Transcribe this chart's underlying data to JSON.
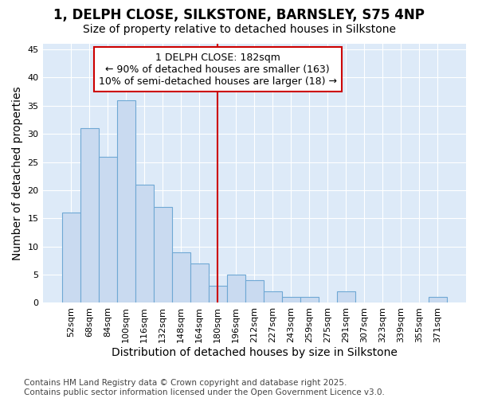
{
  "title1": "1, DELPH CLOSE, SILKSTONE, BARNSLEY, S75 4NP",
  "title2": "Size of property relative to detached houses in Silkstone",
  "xlabel": "Distribution of detached houses by size in Silkstone",
  "ylabel": "Number of detached properties",
  "categories": [
    "52sqm",
    "68sqm",
    "84sqm",
    "100sqm",
    "116sqm",
    "132sqm",
    "148sqm",
    "164sqm",
    "180sqm",
    "196sqm",
    "212sqm",
    "227sqm",
    "243sqm",
    "259sqm",
    "275sqm",
    "291sqm",
    "307sqm",
    "323sqm",
    "339sqm",
    "355sqm",
    "371sqm"
  ],
  "values": [
    16,
    31,
    26,
    36,
    21,
    17,
    9,
    7,
    3,
    5,
    4,
    2,
    1,
    1,
    0,
    2,
    0,
    0,
    0,
    0,
    1
  ],
  "bar_color": "#c9daf0",
  "bar_edge_color": "#6fa8d4",
  "background_color": "#ddeaf8",
  "grid_color": "#ffffff",
  "fig_background": "#ffffff",
  "marker_index": 8,
  "marker_color": "#cc0000",
  "annotation_title": "1 DELPH CLOSE: 182sqm",
  "annotation_line1": "← 90% of detached houses are smaller (163)",
  "annotation_line2": "10% of semi-detached houses are larger (18) →",
  "annotation_box_color": "#cc0000",
  "ylim": [
    0,
    46
  ],
  "yticks": [
    0,
    5,
    10,
    15,
    20,
    25,
    30,
    35,
    40,
    45
  ],
  "title_fontsize": 12,
  "subtitle_fontsize": 10,
  "axis_label_fontsize": 10,
  "tick_fontsize": 8,
  "annotation_fontsize": 9,
  "footer_fontsize": 7.5,
  "footer": "Contains HM Land Registry data © Crown copyright and database right 2025.\nContains public sector information licensed under the Open Government Licence v3.0."
}
